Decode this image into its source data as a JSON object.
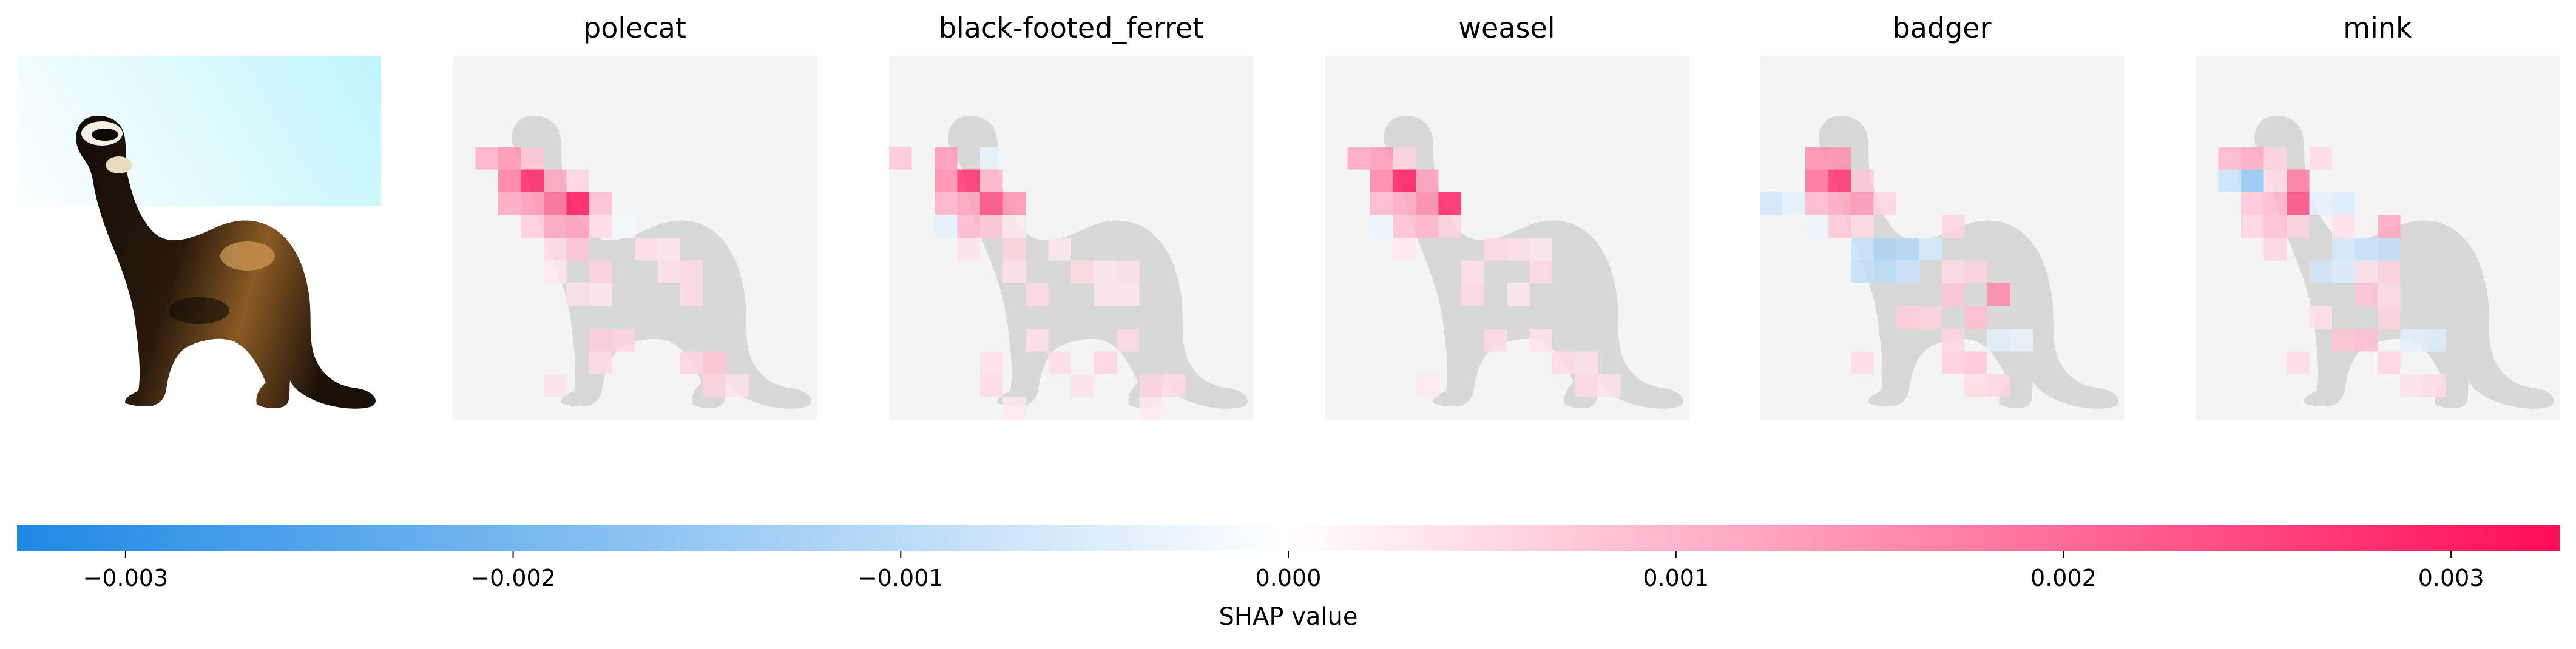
{
  "chart_data": {
    "type": "heatmap",
    "titles": [
      "polecat",
      "black-footed_ferret",
      "weasel",
      "badger",
      "mink"
    ],
    "colorbar": {
      "label": "SHAP value",
      "ticks": [
        -0.003,
        -0.002,
        -0.001,
        0.0,
        0.001,
        0.002,
        0.003
      ],
      "tick_labels": [
        "−0.003",
        "−0.002",
        "−0.001",
        "0.000",
        "0.001",
        "0.002",
        "0.003"
      ],
      "range": [
        -0.00328,
        0.00328
      ],
      "negative_color": "#1e88e5",
      "positive_color": "#ff0d57"
    },
    "grid_size": [
      16,
      16
    ],
    "cells": [
      [
        [
          4,
          1,
          0.0011
        ],
        [
          4,
          2,
          0.0015
        ],
        [
          4,
          3,
          0.0008
        ],
        [
          5,
          2,
          0.0018
        ],
        [
          5,
          3,
          0.003
        ],
        [
          5,
          4,
          0.0012
        ],
        [
          5,
          5,
          0.0006
        ],
        [
          6,
          2,
          0.0012
        ],
        [
          6,
          3,
          0.0014
        ],
        [
          6,
          4,
          0.002
        ],
        [
          6,
          5,
          0.0032
        ],
        [
          6,
          6,
          0.0009
        ],
        [
          7,
          3,
          0.0007
        ],
        [
          7,
          4,
          0.0012
        ],
        [
          7,
          5,
          0.0013
        ],
        [
          7,
          6,
          0.0005
        ],
        [
          7,
          7,
          -0.0002
        ],
        [
          8,
          4,
          0.0005
        ],
        [
          8,
          5,
          0.0008
        ],
        [
          8,
          8,
          0.0004
        ],
        [
          8,
          9,
          0.0003
        ],
        [
          9,
          4,
          0.0003
        ],
        [
          9,
          6,
          0.0006
        ],
        [
          9,
          9,
          0.0004
        ],
        [
          9,
          10,
          0.0005
        ],
        [
          10,
          5,
          0.0004
        ],
        [
          10,
          6,
          0.0003
        ],
        [
          10,
          10,
          0.0005
        ],
        [
          12,
          6,
          0.0007
        ],
        [
          12,
          7,
          0.0006
        ],
        [
          13,
          6,
          0.0005
        ],
        [
          13,
          10,
          0.0006
        ],
        [
          13,
          11,
          0.0008
        ],
        [
          14,
          4,
          0.0004
        ],
        [
          14,
          11,
          0.0006
        ],
        [
          14,
          12,
          0.0004
        ]
      ],
      [
        [
          4,
          0,
          0.0008
        ],
        [
          4,
          2,
          0.0014
        ],
        [
          4,
          4,
          -0.0003
        ],
        [
          5,
          2,
          0.0016
        ],
        [
          5,
          3,
          0.0028
        ],
        [
          5,
          4,
          0.001
        ],
        [
          6,
          2,
          0.0011
        ],
        [
          6,
          3,
          0.0013
        ],
        [
          6,
          4,
          0.0024
        ],
        [
          6,
          5,
          0.0015
        ],
        [
          7,
          2,
          -0.0004
        ],
        [
          7,
          3,
          0.001
        ],
        [
          7,
          4,
          0.0008
        ],
        [
          7,
          5,
          0.0003
        ],
        [
          8,
          3,
          0.0004
        ],
        [
          8,
          5,
          0.0006
        ],
        [
          8,
          7,
          0.0003
        ],
        [
          9,
          5,
          0.0004
        ],
        [
          9,
          8,
          0.0005
        ],
        [
          9,
          9,
          0.0003
        ],
        [
          9,
          10,
          0.0004
        ],
        [
          10,
          6,
          0.0005
        ],
        [
          10,
          9,
          0.0003
        ],
        [
          10,
          10,
          0.0003
        ],
        [
          12,
          6,
          0.0004
        ],
        [
          12,
          10,
          0.0005
        ],
        [
          13,
          4,
          0.0004
        ],
        [
          13,
          7,
          0.0005
        ],
        [
          13,
          9,
          0.0006
        ],
        [
          14,
          4,
          0.0005
        ],
        [
          14,
          8,
          0.0004
        ],
        [
          14,
          11,
          0.0006
        ],
        [
          14,
          12,
          0.0005
        ],
        [
          15,
          5,
          0.0003
        ],
        [
          15,
          11,
          0.0003
        ]
      ],
      [
        [
          4,
          1,
          0.0012
        ],
        [
          4,
          2,
          0.0014
        ],
        [
          4,
          3,
          0.0006
        ],
        [
          5,
          2,
          0.0017
        ],
        [
          5,
          3,
          0.0031
        ],
        [
          5,
          4,
          0.0013
        ],
        [
          6,
          2,
          0.001
        ],
        [
          6,
          3,
          0.0012
        ],
        [
          6,
          4,
          0.0016
        ],
        [
          6,
          5,
          0.003
        ],
        [
          7,
          2,
          -0.0003
        ],
        [
          7,
          3,
          0.0009
        ],
        [
          7,
          4,
          0.001
        ],
        [
          7,
          5,
          0.0006
        ],
        [
          8,
          3,
          0.0003
        ],
        [
          8,
          7,
          0.0005
        ],
        [
          8,
          8,
          0.0004
        ],
        [
          8,
          9,
          0.0003
        ],
        [
          9,
          6,
          0.0004
        ],
        [
          9,
          9,
          0.0005
        ],
        [
          10,
          6,
          0.0005
        ],
        [
          10,
          8,
          0.0003
        ],
        [
          12,
          7,
          0.0005
        ],
        [
          12,
          9,
          0.0004
        ],
        [
          13,
          10,
          0.0005
        ],
        [
          13,
          11,
          0.0004
        ],
        [
          14,
          4,
          0.0003
        ],
        [
          14,
          11,
          0.0005
        ],
        [
          14,
          12,
          0.0004
        ]
      ],
      [
        [
          4,
          2,
          0.0016
        ],
        [
          4,
          3,
          0.0015
        ],
        [
          5,
          2,
          0.002
        ],
        [
          5,
          3,
          0.0028
        ],
        [
          5,
          4,
          0.0008
        ],
        [
          6,
          0,
          -0.0007
        ],
        [
          6,
          1,
          -0.0004
        ],
        [
          6,
          2,
          0.001
        ],
        [
          6,
          3,
          0.0012
        ],
        [
          6,
          4,
          0.0014
        ],
        [
          6,
          5,
          0.0006
        ],
        [
          7,
          2,
          -0.0003
        ],
        [
          7,
          3,
          0.0008
        ],
        [
          7,
          4,
          0.0005
        ],
        [
          7,
          8,
          0.0006
        ],
        [
          8,
          4,
          -0.0008
        ],
        [
          8,
          5,
          -0.0012
        ],
        [
          8,
          6,
          -0.0011
        ],
        [
          8,
          7,
          -0.0006
        ],
        [
          9,
          4,
          -0.0009
        ],
        [
          9,
          5,
          -0.001
        ],
        [
          9,
          6,
          -0.0008
        ],
        [
          9,
          8,
          0.0005
        ],
        [
          9,
          9,
          0.0006
        ],
        [
          10,
          8,
          0.0008
        ],
        [
          10,
          10,
          0.0016
        ],
        [
          11,
          6,
          0.0007
        ],
        [
          11,
          7,
          0.0006
        ],
        [
          11,
          9,
          0.0009
        ],
        [
          12,
          8,
          0.0006
        ],
        [
          12,
          10,
          -0.0004
        ],
        [
          12,
          11,
          -0.0003
        ],
        [
          13,
          4,
          0.0005
        ],
        [
          13,
          8,
          0.0007
        ],
        [
          13,
          9,
          0.0008
        ],
        [
          14,
          9,
          0.0005
        ],
        [
          14,
          10,
          0.0006
        ]
      ],
      [
        [
          4,
          1,
          0.001
        ],
        [
          4,
          2,
          0.0012
        ],
        [
          4,
          3,
          0.0006
        ],
        [
          4,
          5,
          0.0005
        ],
        [
          5,
          1,
          -0.0008
        ],
        [
          5,
          2,
          -0.0016
        ],
        [
          5,
          3,
          0.0005
        ],
        [
          5,
          4,
          0.0018
        ],
        [
          6,
          2,
          0.0008
        ],
        [
          6,
          3,
          0.001
        ],
        [
          6,
          4,
          0.0024
        ],
        [
          6,
          5,
          -0.0004
        ],
        [
          6,
          6,
          -0.0005
        ],
        [
          7,
          2,
          0.0006
        ],
        [
          7,
          3,
          0.0009
        ],
        [
          7,
          4,
          0.0006
        ],
        [
          7,
          6,
          0.0004
        ],
        [
          7,
          8,
          0.0012
        ],
        [
          8,
          3,
          0.0006
        ],
        [
          8,
          6,
          -0.0006
        ],
        [
          8,
          7,
          -0.0008
        ],
        [
          8,
          8,
          -0.0009
        ],
        [
          9,
          5,
          -0.0007
        ],
        [
          9,
          6,
          -0.0005
        ],
        [
          9,
          7,
          0.0004
        ],
        [
          9,
          8,
          0.0006
        ],
        [
          10,
          7,
          0.0008
        ],
        [
          10,
          8,
          0.0005
        ],
        [
          11,
          5,
          0.0004
        ],
        [
          11,
          8,
          0.0006
        ],
        [
          12,
          6,
          0.0008
        ],
        [
          12,
          7,
          0.0009
        ],
        [
          12,
          9,
          -0.0004
        ],
        [
          12,
          10,
          -0.0005
        ],
        [
          13,
          4,
          0.0005
        ],
        [
          13,
          8,
          0.0006
        ],
        [
          14,
          9,
          0.0004
        ],
        [
          14,
          10,
          0.0005
        ]
      ]
    ]
  }
}
